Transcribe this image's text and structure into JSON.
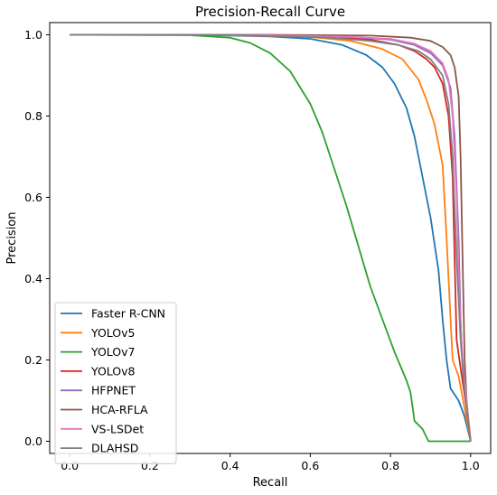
{
  "chart_data": {
    "type": "line",
    "title": "Precision-Recall Curve",
    "xlabel": "Recall",
    "ylabel": "Precision",
    "xlim": [
      -0.05,
      1.05
    ],
    "ylim": [
      -0.03,
      1.03
    ],
    "xticks": [
      0.0,
      0.2,
      0.4,
      0.6,
      0.8,
      1.0
    ],
    "yticks": [
      0.0,
      0.2,
      0.4,
      0.6,
      0.8,
      1.0
    ],
    "xtick_labels": [
      "0.0",
      "0.2",
      "0.4",
      "0.6",
      "0.8",
      "1.0"
    ],
    "ytick_labels": [
      "0.0",
      "0.2",
      "0.4",
      "0.6",
      "0.8",
      "1.0"
    ],
    "grid": false,
    "legend_position": "lower-left",
    "series": [
      {
        "name": "Faster R-CNN",
        "color": "#1f77b4",
        "points": [
          [
            0,
            1.0
          ],
          [
            0.3,
            1.0
          ],
          [
            0.5,
            0.996
          ],
          [
            0.6,
            0.99
          ],
          [
            0.68,
            0.975
          ],
          [
            0.74,
            0.95
          ],
          [
            0.78,
            0.92
          ],
          [
            0.81,
            0.88
          ],
          [
            0.84,
            0.82
          ],
          [
            0.86,
            0.75
          ],
          [
            0.88,
            0.65
          ],
          [
            0.9,
            0.55
          ],
          [
            0.92,
            0.42
          ],
          [
            0.93,
            0.3
          ],
          [
            0.94,
            0.2
          ],
          [
            0.95,
            0.13
          ],
          [
            0.97,
            0.1
          ],
          [
            0.985,
            0.06
          ],
          [
            1.0,
            0.0
          ]
        ]
      },
      {
        "name": "YOLOv5",
        "color": "#ff7f0e",
        "points": [
          [
            0,
            1.0
          ],
          [
            0.35,
            1.0
          ],
          [
            0.6,
            0.995
          ],
          [
            0.7,
            0.985
          ],
          [
            0.78,
            0.965
          ],
          [
            0.83,
            0.94
          ],
          [
            0.87,
            0.89
          ],
          [
            0.89,
            0.84
          ],
          [
            0.91,
            0.78
          ],
          [
            0.93,
            0.68
          ],
          [
            0.94,
            0.5
          ],
          [
            0.95,
            0.3
          ],
          [
            0.955,
            0.2
          ],
          [
            0.97,
            0.16
          ],
          [
            0.985,
            0.08
          ],
          [
            1.0,
            0.0
          ]
        ]
      },
      {
        "name": "YOLOv7",
        "color": "#2ca02c",
        "points": [
          [
            0,
            1.0
          ],
          [
            0.3,
            0.999
          ],
          [
            0.4,
            0.993
          ],
          [
            0.45,
            0.98
          ],
          [
            0.5,
            0.955
          ],
          [
            0.55,
            0.91
          ],
          [
            0.6,
            0.83
          ],
          [
            0.63,
            0.76
          ],
          [
            0.66,
            0.67
          ],
          [
            0.69,
            0.58
          ],
          [
            0.72,
            0.48
          ],
          [
            0.75,
            0.38
          ],
          [
            0.78,
            0.3
          ],
          [
            0.81,
            0.22
          ],
          [
            0.84,
            0.15
          ],
          [
            0.85,
            0.12
          ],
          [
            0.86,
            0.05
          ],
          [
            0.88,
            0.03
          ],
          [
            0.895,
            0.0
          ],
          [
            1.0,
            0.0
          ]
        ]
      },
      {
        "name": "YOLOv8",
        "color": "#d62728",
        "points": [
          [
            0,
            1.0
          ],
          [
            0.4,
            1.0
          ],
          [
            0.65,
            0.995
          ],
          [
            0.75,
            0.988
          ],
          [
            0.82,
            0.975
          ],
          [
            0.86,
            0.96
          ],
          [
            0.89,
            0.94
          ],
          [
            0.91,
            0.92
          ],
          [
            0.93,
            0.88
          ],
          [
            0.945,
            0.8
          ],
          [
            0.955,
            0.65
          ],
          [
            0.96,
            0.45
          ],
          [
            0.965,
            0.25
          ],
          [
            0.975,
            0.18
          ],
          [
            0.99,
            0.08
          ],
          [
            1.0,
            0.0
          ]
        ]
      },
      {
        "name": "HFPNET",
        "color": "#9467bd",
        "points": [
          [
            0,
            1.0
          ],
          [
            0.45,
            1.0
          ],
          [
            0.7,
            0.995
          ],
          [
            0.8,
            0.988
          ],
          [
            0.86,
            0.975
          ],
          [
            0.9,
            0.955
          ],
          [
            0.93,
            0.925
          ],
          [
            0.95,
            0.87
          ],
          [
            0.96,
            0.75
          ],
          [
            0.97,
            0.5
          ],
          [
            0.975,
            0.3
          ],
          [
            0.98,
            0.18
          ],
          [
            0.99,
            0.09
          ],
          [
            1.0,
            0.0
          ]
        ]
      },
      {
        "name": "HCA-RFLA",
        "color": "#8c564b",
        "points": [
          [
            0,
            1.0
          ],
          [
            0.5,
            1.0
          ],
          [
            0.75,
            0.998
          ],
          [
            0.85,
            0.993
          ],
          [
            0.9,
            0.985
          ],
          [
            0.93,
            0.97
          ],
          [
            0.95,
            0.95
          ],
          [
            0.96,
            0.92
          ],
          [
            0.97,
            0.85
          ],
          [
            0.975,
            0.7
          ],
          [
            0.98,
            0.45
          ],
          [
            0.985,
            0.2
          ],
          [
            0.99,
            0.1
          ],
          [
            1.0,
            0.0
          ]
        ]
      },
      {
        "name": "VS-LSDet",
        "color": "#e377c2",
        "points": [
          [
            0,
            1.0
          ],
          [
            0.45,
            1.0
          ],
          [
            0.7,
            0.995
          ],
          [
            0.8,
            0.99
          ],
          [
            0.86,
            0.978
          ],
          [
            0.9,
            0.96
          ],
          [
            0.93,
            0.93
          ],
          [
            0.945,
            0.89
          ],
          [
            0.955,
            0.8
          ],
          [
            0.965,
            0.6
          ],
          [
            0.972,
            0.35
          ],
          [
            0.98,
            0.2
          ],
          [
            0.99,
            0.1
          ],
          [
            1.0,
            0.0
          ]
        ]
      },
      {
        "name": "DLAHSD",
        "color": "#7f7f7f",
        "points": [
          [
            0,
            1.0
          ],
          [
            0.4,
            1.0
          ],
          [
            0.65,
            0.993
          ],
          [
            0.75,
            0.985
          ],
          [
            0.82,
            0.975
          ],
          [
            0.87,
            0.96
          ],
          [
            0.9,
            0.94
          ],
          [
            0.93,
            0.9
          ],
          [
            0.945,
            0.83
          ],
          [
            0.955,
            0.7
          ],
          [
            0.965,
            0.45
          ],
          [
            0.975,
            0.25
          ],
          [
            0.985,
            0.12
          ],
          [
            1.0,
            0.0
          ]
        ]
      }
    ]
  }
}
